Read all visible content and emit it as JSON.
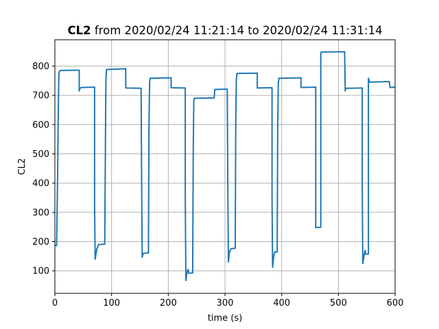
{
  "chart_data": {
    "type": "line",
    "title_bold": "CL2",
    "title_rest": " from 2020/02/24 11:21:14 to 2020/02/24 11:31:14",
    "xlabel": "time (s)",
    "ylabel": "CL2",
    "xlim": [
      0,
      600
    ],
    "ylim": [
      23,
      890
    ],
    "grid": true,
    "x_ticks": [
      0,
      100,
      200,
      300,
      400,
      500,
      600
    ],
    "y_ticks": [
      100,
      200,
      300,
      400,
      500,
      600,
      700,
      800
    ],
    "line_color": "#1f77b4",
    "series": [
      {
        "points": [
          [
            0,
            187
          ],
          [
            3,
            186
          ],
          [
            5,
            450
          ],
          [
            6,
            650
          ],
          [
            7,
            770
          ],
          [
            8,
            782
          ],
          [
            10,
            785
          ],
          [
            43,
            786
          ],
          [
            43,
            715
          ],
          [
            44,
            724
          ],
          [
            47,
            727
          ],
          [
            70,
            728
          ],
          [
            70,
            320
          ],
          [
            71,
            140
          ],
          [
            74,
            175
          ],
          [
            77,
            190
          ],
          [
            88,
            191
          ],
          [
            89,
            500
          ],
          [
            90,
            750
          ],
          [
            91,
            788
          ],
          [
            125,
            791
          ],
          [
            125,
            725
          ],
          [
            152,
            724
          ],
          [
            153,
            400
          ],
          [
            154,
            147
          ],
          [
            156,
            160
          ],
          [
            165,
            161
          ],
          [
            166,
            600
          ],
          [
            167,
            745
          ],
          [
            168,
            758
          ],
          [
            205,
            760
          ],
          [
            205,
            726
          ],
          [
            230,
            725
          ],
          [
            230,
            350
          ],
          [
            231,
            67
          ],
          [
            233,
            95
          ],
          [
            235,
            105
          ],
          [
            236,
            92
          ],
          [
            243,
            93
          ],
          [
            244,
            500
          ],
          [
            245,
            680
          ],
          [
            246,
            690
          ],
          [
            281,
            691
          ],
          [
            282,
            720
          ],
          [
            300,
            721
          ],
          [
            304,
            721
          ],
          [
            305,
            400
          ],
          [
            306,
            130
          ],
          [
            308,
            165
          ],
          [
            311,
            176
          ],
          [
            318,
            177
          ],
          [
            319,
            600
          ],
          [
            320,
            750
          ],
          [
            321,
            775
          ],
          [
            357,
            776
          ],
          [
            357,
            725
          ],
          [
            383,
            726
          ],
          [
            383,
            350
          ],
          [
            384,
            112
          ],
          [
            386,
            150
          ],
          [
            388,
            165
          ],
          [
            392,
            164
          ],
          [
            393,
            600
          ],
          [
            394,
            740
          ],
          [
            395,
            758
          ],
          [
            434,
            760
          ],
          [
            434,
            727
          ],
          [
            460,
            728
          ],
          [
            460,
            248
          ],
          [
            469,
            249
          ],
          [
            469,
            845
          ],
          [
            470,
            848
          ],
          [
            511,
            849
          ],
          [
            512,
            715
          ],
          [
            513,
            724
          ],
          [
            542,
            725
          ],
          [
            542,
            400
          ],
          [
            543,
            125
          ],
          [
            545,
            150
          ],
          [
            547,
            170
          ],
          [
            548,
            157
          ],
          [
            553,
            158
          ],
          [
            553,
            758
          ],
          [
            555,
            745
          ],
          [
            590,
            747
          ],
          [
            591,
            727
          ],
          [
            600,
            728
          ]
        ]
      }
    ]
  }
}
